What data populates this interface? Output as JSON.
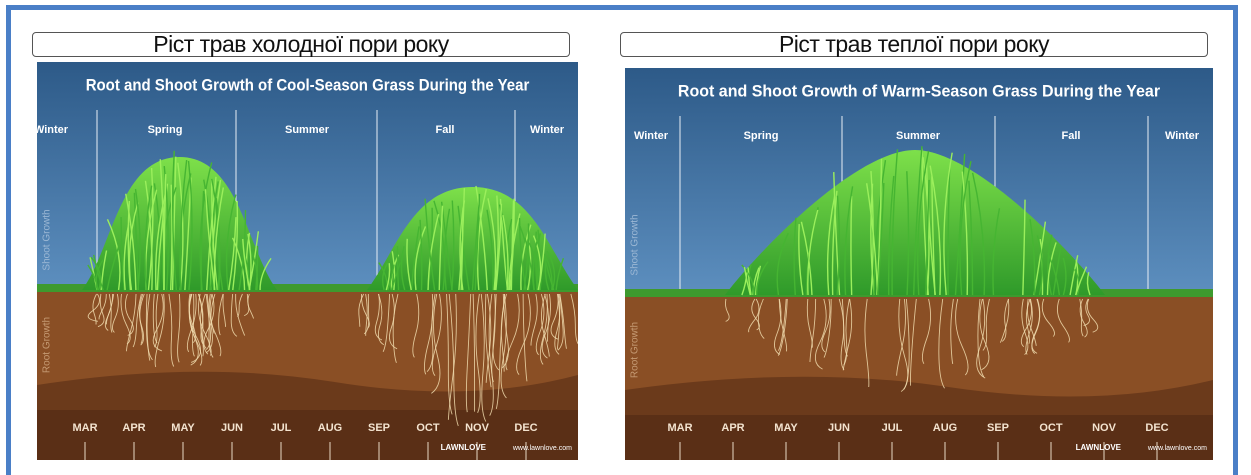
{
  "panels": [
    {
      "heading": "Ріст трав холодної пори року",
      "title": "Root and Shoot Growth of Cool-Season Grass During the Year",
      "seasons": [
        "Winter",
        "Spring",
        "Summer",
        "Fall",
        "Winter"
      ],
      "shoot_label": "Shoot Growth",
      "root_label": "Root Growth",
      "months": [
        "MAR",
        "APR",
        "MAY",
        "JUN",
        "JUL",
        "AUG",
        "SEP",
        "OCT",
        "NOV",
        "DEC"
      ],
      "brand": "LAWNLOVE",
      "site": "www.lawnlove.com"
    },
    {
      "heading": "Ріст трав теплої пори року",
      "title": "Root and Shoot Growth of Warm-Season Grass During the Year",
      "seasons": [
        "Winter",
        "Spring",
        "Summer",
        "Fall",
        "Winter"
      ],
      "shoot_label": "Shoot Growth",
      "root_label": "Root Growth",
      "months": [
        "MAR",
        "APR",
        "MAY",
        "JUN",
        "JUL",
        "AUG",
        "SEP",
        "OCT",
        "NOV",
        "DEC"
      ],
      "brand": "LAWNLOVE",
      "site": "www.lawnlove.com"
    }
  ]
}
